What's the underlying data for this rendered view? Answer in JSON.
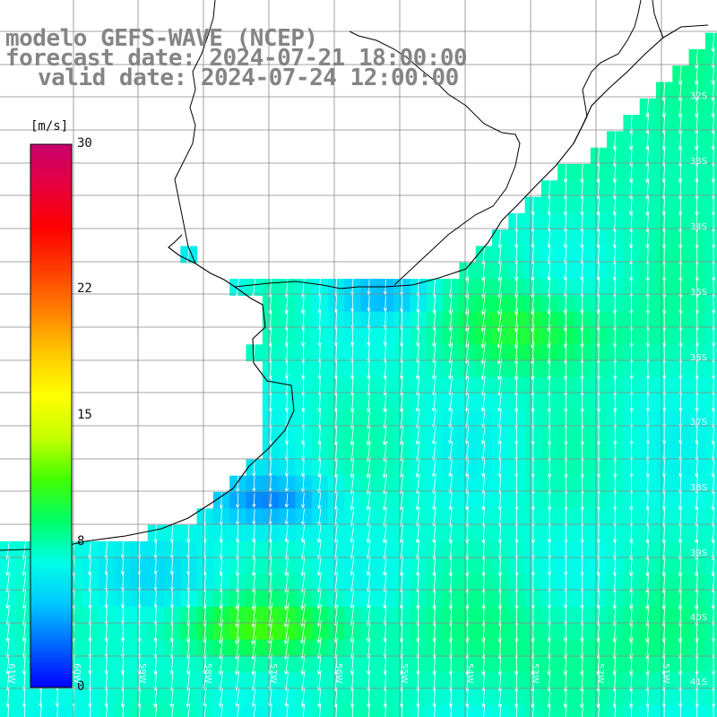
{
  "title": {
    "line1": "modelo GEFS-WAVE (NCEP)",
    "line2": "forecast date: 2024-07-21 18:00:00",
    "line3": "valid date: 2024-07-24 12:00:00"
  },
  "colorbar": {
    "unit": "[m/s]",
    "ticks": [
      "30",
      "22",
      "15",
      "8",
      "0"
    ],
    "tick_values": [
      30,
      22,
      15,
      8,
      0
    ],
    "range": [
      0,
      30
    ],
    "colors": [
      "#0000ff",
      "#0066ff",
      "#00c8ff",
      "#00ffe6",
      "#00ff66",
      "#44ff00",
      "#c8ff00",
      "#ffff00",
      "#ffc800",
      "#ff8000",
      "#ff3c00",
      "#ff0000",
      "#e6003c",
      "#c8006e"
    ]
  },
  "latitude_labels": [
    "32S",
    "33S",
    "34S",
    "35S",
    "36S",
    "37S",
    "38S",
    "39S",
    "40S",
    "41S"
  ],
  "longitude_labels": [
    "61W",
    "60W",
    "59W",
    "58W",
    "57W",
    "56W",
    "55W",
    "54W",
    "53W",
    "52W",
    "51W"
  ],
  "wind_direction": "from north (arrows point south)",
  "legend_colors": {
    "land": "#ffffff",
    "grid": "#888888",
    "coast": "#000000",
    "arrows": "#ffffff"
  }
}
